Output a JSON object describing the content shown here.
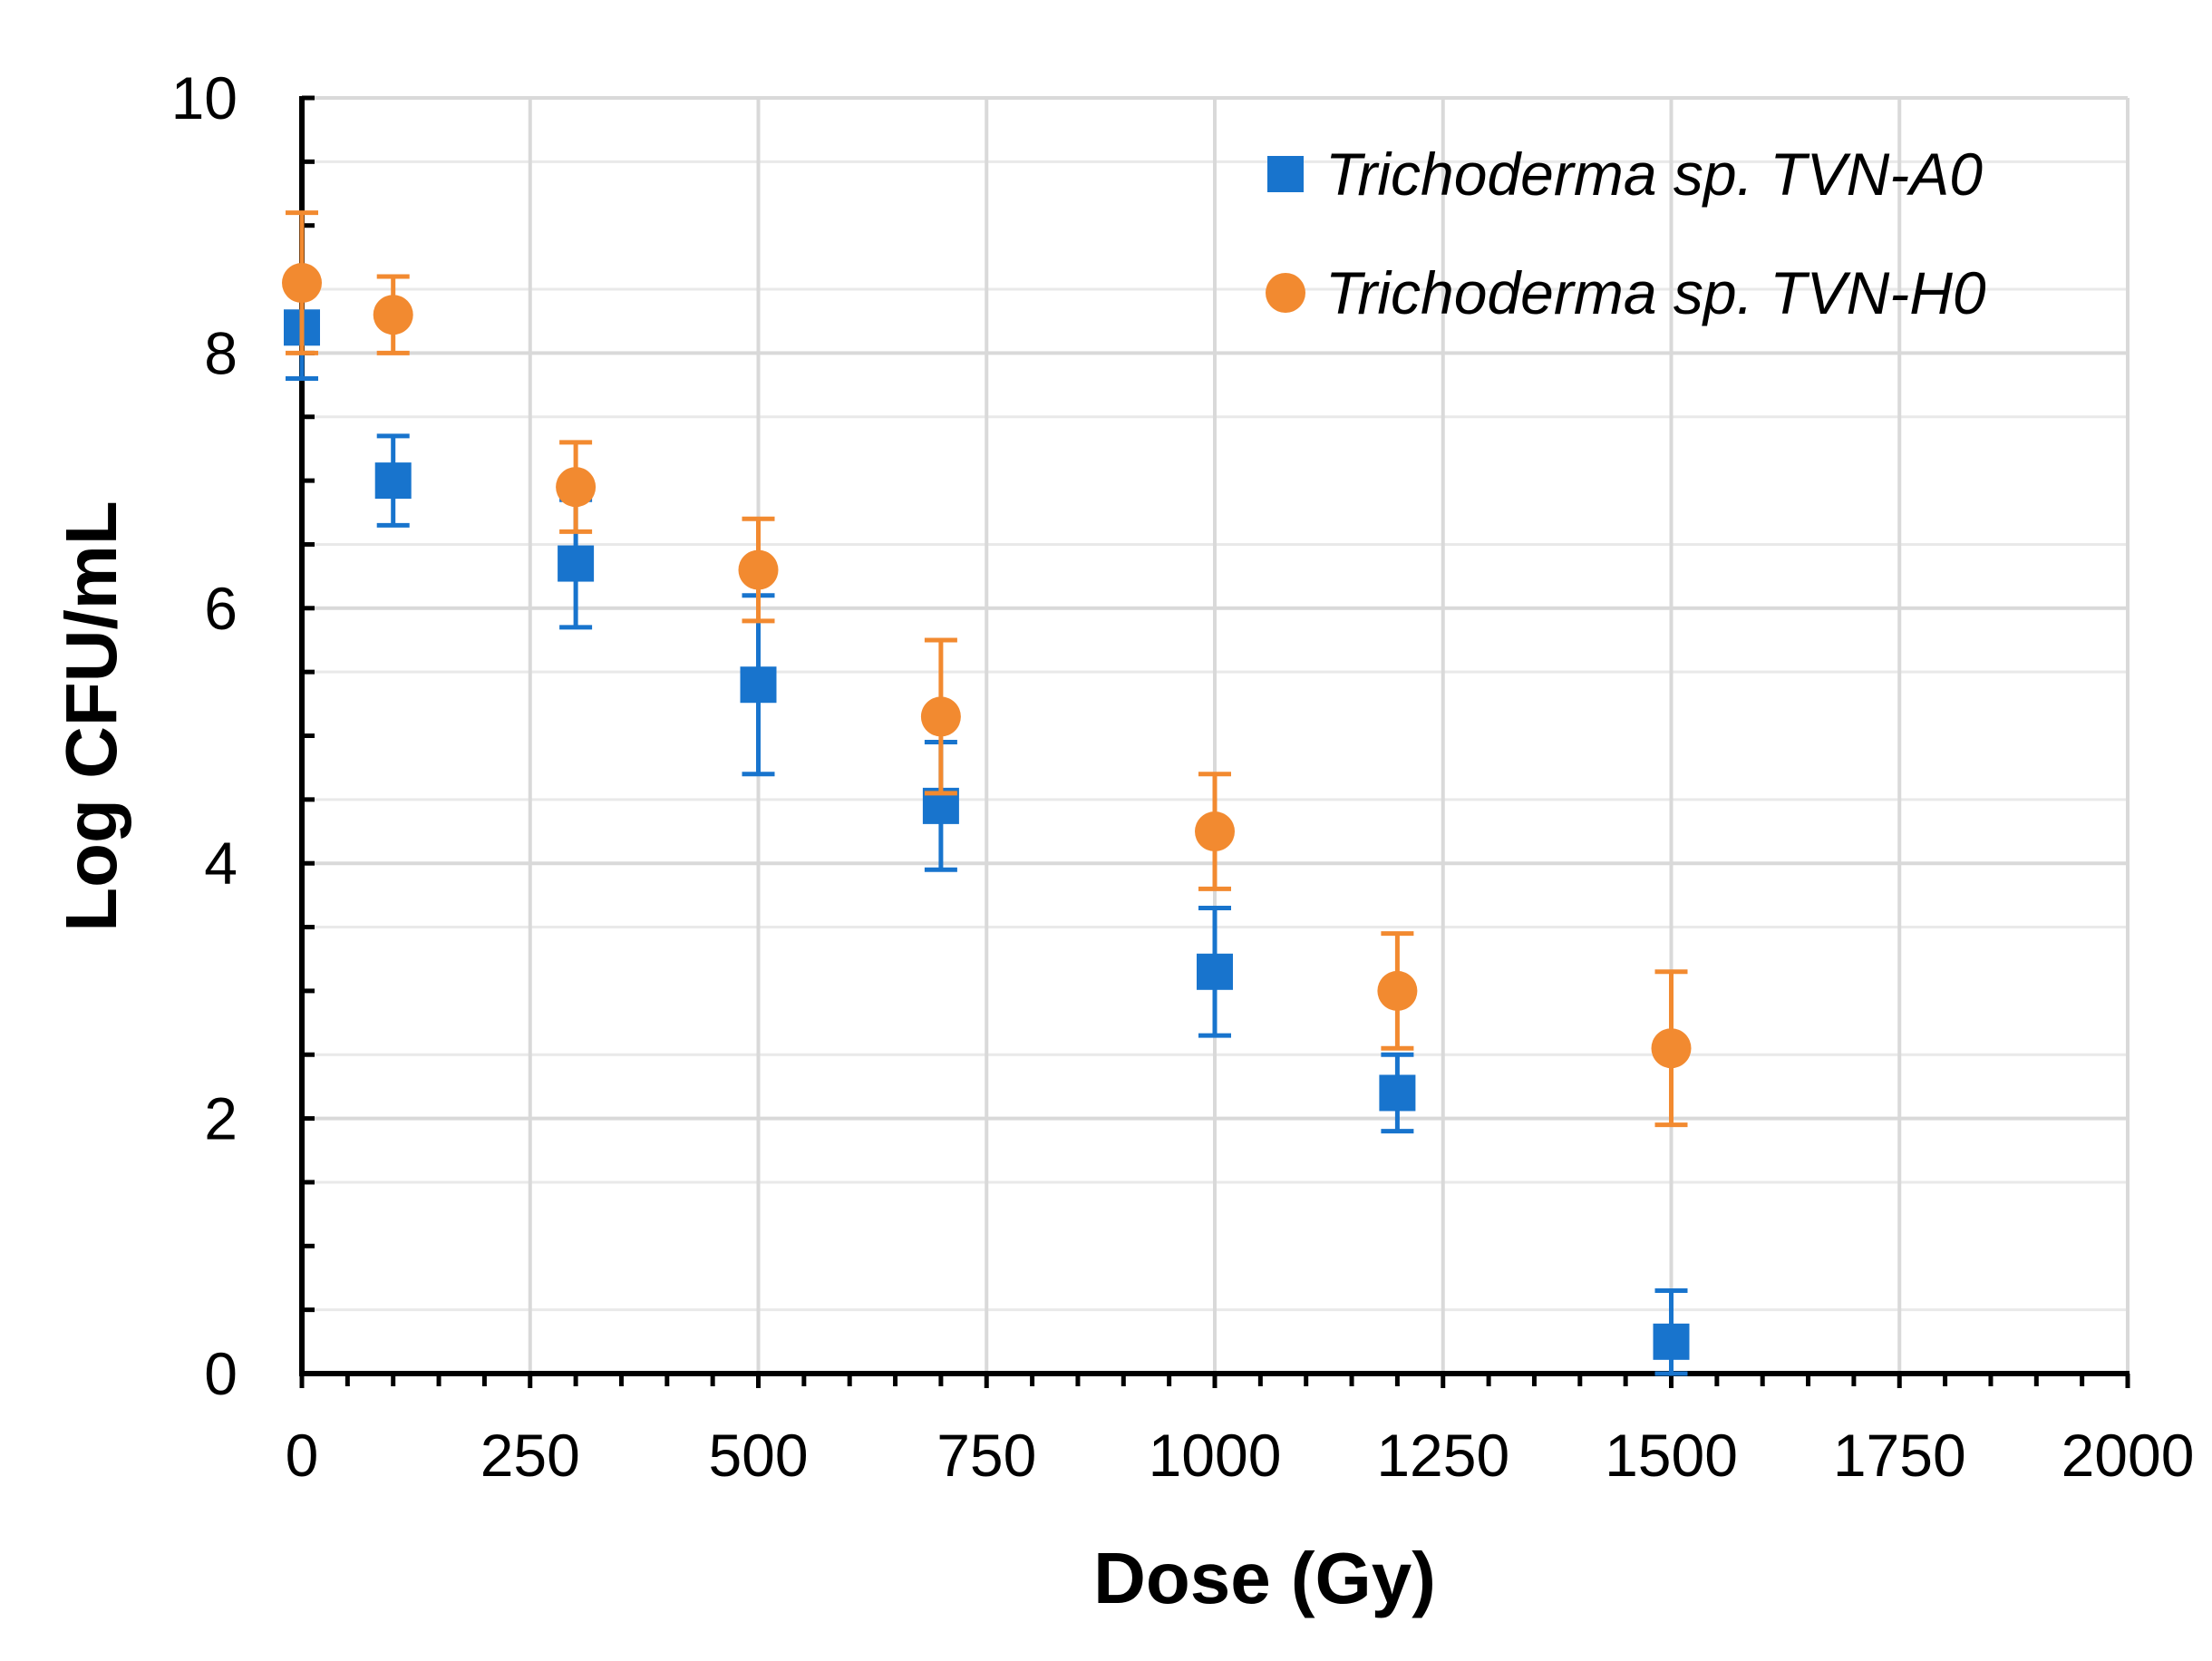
{
  "chart_data": {
    "type": "scatter",
    "title": "",
    "xlabel": "Dose (Gy)",
    "ylabel": "Log CFU/mL",
    "xlim": [
      0,
      2000
    ],
    "ylim": [
      0,
      10
    ],
    "xticks": [
      0,
      250,
      500,
      750,
      1000,
      1250,
      1500,
      1750,
      2000
    ],
    "yticks": [
      0,
      2,
      4,
      6,
      8,
      10
    ],
    "xtick_labels": [
      "0",
      "250",
      "500",
      "750",
      "1000",
      "1250",
      "1500",
      "1750",
      "2000"
    ],
    "ytick_labels": [
      "0",
      "2",
      "4",
      "6",
      "8",
      "10"
    ],
    "grid": true,
    "legend_position": "top-right",
    "series": [
      {
        "name": "Trichoderma sp. TVN-A0",
        "marker": "square",
        "color": "#1874CD",
        "x": [
          0,
          100,
          300,
          500,
          700,
          1000,
          1200,
          1500
        ],
        "y": [
          8.2,
          7.0,
          6.35,
          5.4,
          4.45,
          3.15,
          2.2,
          0.25
        ],
        "error": [
          0.4,
          0.35,
          0.5,
          0.7,
          0.5,
          0.5,
          0.3,
          0.4
        ]
      },
      {
        "name": "Trichoderma sp. TVN-H0",
        "marker": "circle",
        "color": "#F28A30",
        "x": [
          0,
          100,
          300,
          500,
          700,
          1000,
          1200,
          1500
        ],
        "y": [
          8.55,
          8.3,
          6.95,
          6.3,
          5.15,
          4.25,
          3.0,
          2.55
        ],
        "error": [
          0.55,
          0.3,
          0.35,
          0.4,
          0.6,
          0.45,
          0.45,
          0.6
        ]
      }
    ]
  }
}
